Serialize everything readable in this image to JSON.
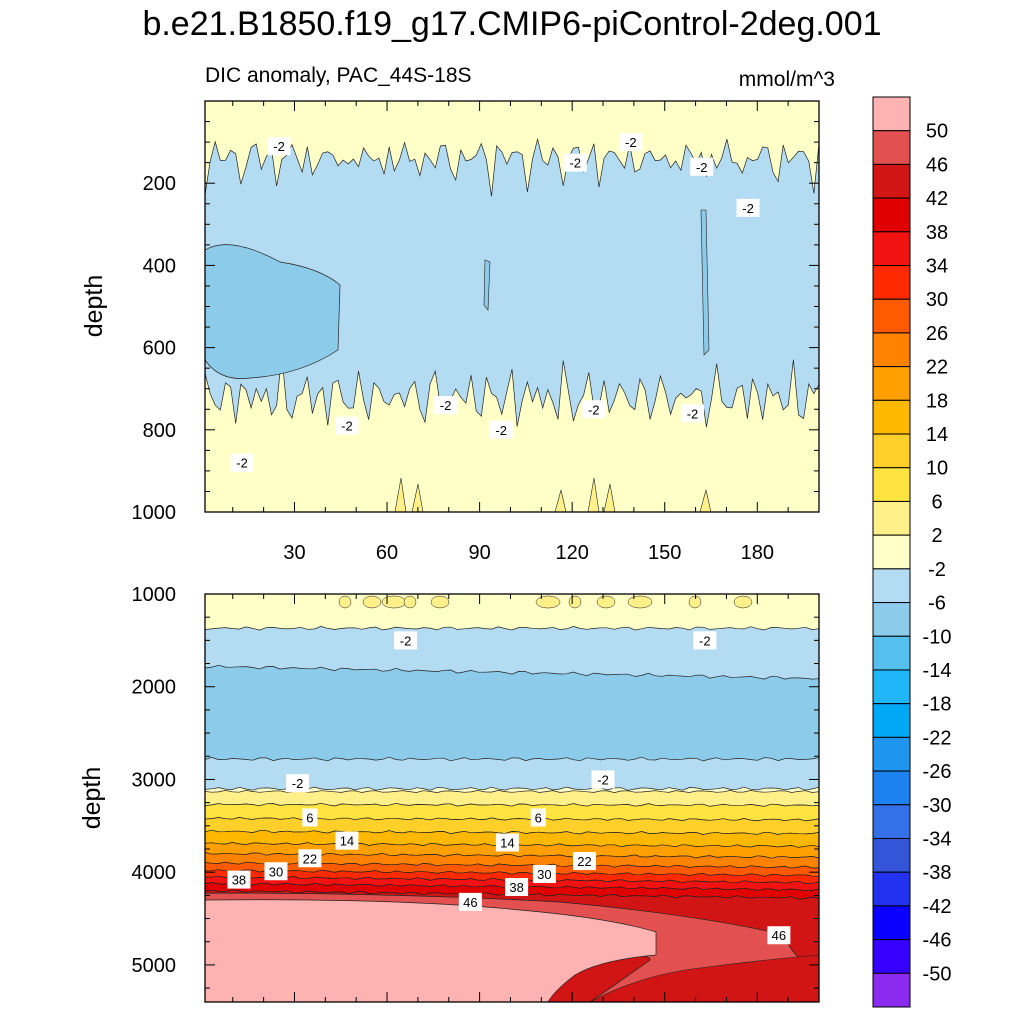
{
  "figure": {
    "title": "b.e21.B1850.f19_g17.CMIP6-piControl-2deg.001",
    "left_string": "DIC anomaly, PAC_44S-18S",
    "right_string": "mmol/m^3"
  },
  "chart_data": [
    {
      "type": "heatmap",
      "panel": "upper",
      "ylabel": "depth",
      "xlabel": "",
      "xlim": [
        1,
        200
      ],
      "ylim": [
        1000,
        0
      ],
      "x_ticks": [
        30,
        60,
        90,
        120,
        150,
        180
      ],
      "y_ticks": [
        200,
        400,
        600,
        800,
        1000
      ],
      "contour_labels": [
        {
          "text": "-2",
          "x": 25,
          "depth": 110
        },
        {
          "text": "-2",
          "x": 121,
          "depth": 150
        },
        {
          "text": "-2",
          "x": 139,
          "depth": 100
        },
        {
          "text": "-2",
          "x": 162,
          "depth": 160
        },
        {
          "text": "-2",
          "x": 177,
          "depth": 260
        },
        {
          "text": "-2",
          "x": 13,
          "depth": 880
        },
        {
          "text": "-2",
          "x": 47,
          "depth": 790
        },
        {
          "text": "-2",
          "x": 79,
          "depth": 740
        },
        {
          "text": "-2",
          "x": 97,
          "depth": 800
        },
        {
          "text": "-2",
          "x": 127,
          "depth": 750
        },
        {
          "text": "-2",
          "x": 159,
          "depth": 760
        }
      ]
    },
    {
      "type": "heatmap",
      "panel": "lower",
      "ylabel": "depth",
      "xlabel": "",
      "xlim": [
        1,
        200
      ],
      "ylim": [
        5400,
        1000
      ],
      "x_ticks": [
        30,
        60,
        90,
        120,
        150,
        180
      ],
      "y_ticks": [
        1000,
        2000,
        3000,
        4000,
        5000
      ],
      "contour_labels": [
        {
          "text": "-2",
          "x": 66,
          "depth": 1500
        },
        {
          "text": "-2",
          "x": 163,
          "depth": 1500
        },
        {
          "text": "-2",
          "x": 31,
          "depth": 3040
        },
        {
          "text": "-2",
          "x": 130,
          "depth": 3000
        },
        {
          "text": "6",
          "x": 35,
          "depth": 3410
        },
        {
          "text": "6",
          "x": 109,
          "depth": 3410
        },
        {
          "text": "14",
          "x": 47,
          "depth": 3660
        },
        {
          "text": "14",
          "x": 99,
          "depth": 3680
        },
        {
          "text": "22",
          "x": 35,
          "depth": 3850
        },
        {
          "text": "22",
          "x": 124,
          "depth": 3880
        },
        {
          "text": "30",
          "x": 24,
          "depth": 3990
        },
        {
          "text": "30",
          "x": 111,
          "depth": 4020
        },
        {
          "text": "38",
          "x": 12,
          "depth": 4080
        },
        {
          "text": "38",
          "x": 102,
          "depth": 4160
        },
        {
          "text": "46",
          "x": 87,
          "depth": 4320
        },
        {
          "text": "46",
          "x": 187,
          "depth": 4680
        }
      ]
    }
  ],
  "colorbar": {
    "labels": [
      "50",
      "46",
      "42",
      "38",
      "34",
      "30",
      "26",
      "22",
      "18",
      "14",
      "10",
      "6",
      "2",
      "-2",
      "-6",
      "-10",
      "-14",
      "-18",
      "-22",
      "-26",
      "-30",
      "-34",
      "-38",
      "-42",
      "-46",
      "-50"
    ],
    "colors": [
      "#ffb2b2",
      "#e35050",
      "#d11515",
      "#e00000",
      "#f21212",
      "#ff2a00",
      "#ff5a00",
      "#ff8200",
      "#ffa000",
      "#ffb800",
      "#ffd02a",
      "#ffe340",
      "#fff08a",
      "#ffffc8",
      "#b3dcf2",
      "#8ccbea",
      "#55bff0",
      "#21b6f7",
      "#00a8f5",
      "#2095ef",
      "#1c82f0",
      "#3470e8",
      "#3455d8",
      "#2232f0",
      "#0a00ff",
      "#3600ff",
      "#8a2bef"
    ],
    "fill_colors": {
      "neutral": "#ffffc8",
      "neg_2_6": "#b3dcf2",
      "neg_6_10": "#8ccbea",
      "pos_2_6": "#fff08a",
      "pos_6_10": "#ffe340",
      "pos_10_14": "#ffd02a",
      "pos_14_18": "#ffb800",
      "pos_18_22": "#ffa000",
      "pos_22_26": "#ff8200",
      "pos_26_30": "#ff5a00",
      "pos_30_34": "#ff2a00",
      "pos_34_38": "#f21212",
      "pos_38_42": "#e00000",
      "pos_42_46": "#d11515",
      "pos_46_50": "#e35050",
      "pos_gt_50": "#ffb2b2"
    }
  }
}
